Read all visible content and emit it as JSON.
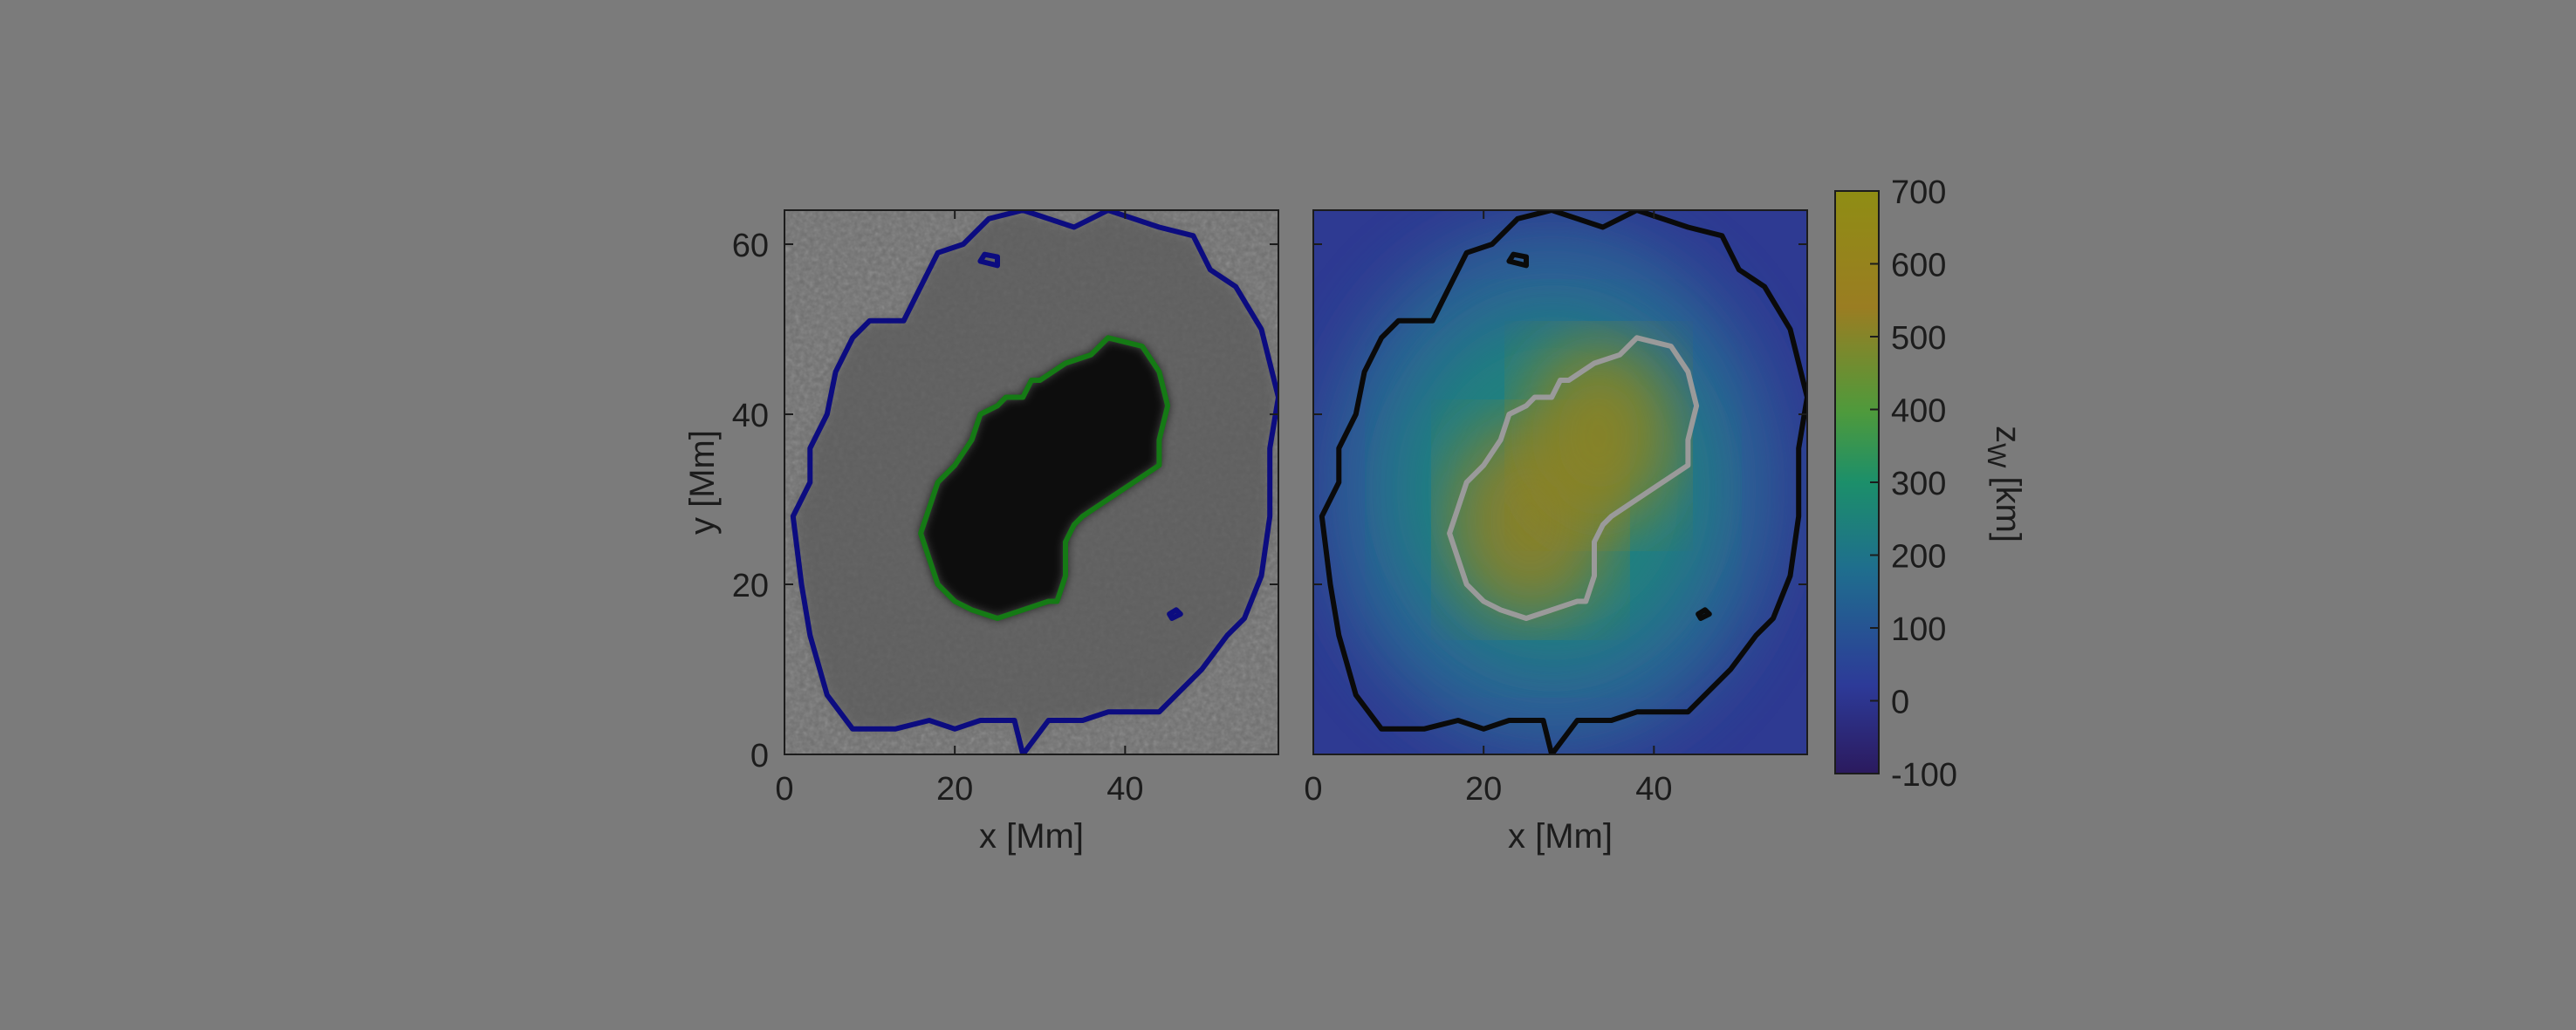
{
  "chart_data": [
    {
      "type": "heatmap",
      "panel": "left",
      "image": "grayscale continuum intensity of a sunspot",
      "xlabel": "x [Mm]",
      "ylabel": "y [Mm]",
      "xlim": [
        0,
        58
      ],
      "ylim": [
        0,
        64
      ],
      "xticks": [
        0,
        20,
        40
      ],
      "yticks": [
        0,
        20,
        40,
        60
      ],
      "contours": [
        {
          "name": "outer",
          "color": "#0c0c80",
          "points": [
            [
              28,
              64
            ],
            [
              34,
              62
            ],
            [
              38,
              64
            ],
            [
              44,
              62
            ],
            [
              48,
              61
            ],
            [
              50,
              57
            ],
            [
              53,
              55
            ],
            [
              56,
              50
            ],
            [
              58,
              42
            ],
            [
              57,
              36
            ],
            [
              57,
              28
            ],
            [
              56,
              21
            ],
            [
              54,
              16
            ],
            [
              52,
              14
            ],
            [
              49,
              10
            ],
            [
              46,
              7
            ],
            [
              44,
              5
            ],
            [
              41,
              5
            ],
            [
              38,
              5
            ],
            [
              35,
              4
            ],
            [
              31,
              4
            ],
            [
              28,
              0
            ],
            [
              27,
              4
            ],
            [
              23,
              4
            ],
            [
              20,
              3
            ],
            [
              17,
              4
            ],
            [
              13,
              3
            ],
            [
              8,
              3
            ],
            [
              5,
              7
            ],
            [
              3,
              14
            ],
            [
              2,
              20
            ],
            [
              1,
              28
            ],
            [
              3,
              32
            ],
            [
              3,
              36
            ],
            [
              5,
              40
            ],
            [
              6,
              45
            ],
            [
              8,
              49
            ],
            [
              10,
              51
            ],
            [
              14,
              51
            ],
            [
              16,
              55
            ],
            [
              18,
              59
            ],
            [
              21,
              60
            ],
            [
              24,
              63
            ],
            [
              28,
              64
            ]
          ]
        },
        {
          "name": "inner",
          "color": "#157a15",
          "points": [
            [
              38,
              49
            ],
            [
              42,
              48
            ],
            [
              44,
              45
            ],
            [
              45,
              41
            ],
            [
              44,
              37
            ],
            [
              44,
              34
            ],
            [
              41,
              32
            ],
            [
              38,
              30
            ],
            [
              35,
              28
            ],
            [
              34,
              27
            ],
            [
              33,
              25
            ],
            [
              33,
              21
            ],
            [
              32,
              18
            ],
            [
              31,
              18
            ],
            [
              28,
              17
            ],
            [
              25,
              16
            ],
            [
              22,
              17
            ],
            [
              20,
              18
            ],
            [
              18,
              20
            ],
            [
              17,
              23
            ],
            [
              16,
              26
            ],
            [
              17,
              29
            ],
            [
              18,
              32
            ],
            [
              20,
              34
            ],
            [
              22,
              37
            ],
            [
              23,
              40
            ],
            [
              25,
              41
            ],
            [
              26,
              42
            ],
            [
              28,
              42
            ],
            [
              29,
              44
            ],
            [
              30,
              44
            ],
            [
              33,
              46
            ],
            [
              36,
              47
            ],
            [
              38,
              49
            ]
          ]
        },
        {
          "name": "blob1",
          "color": "#0c0c80",
          "points": [
            [
              23,
              58
            ],
            [
              25,
              57.5
            ],
            [
              25,
              58.5
            ],
            [
              23.5,
              58.8
            ]
          ]
        },
        {
          "name": "blob2",
          "color": "#0c0c80",
          "points": [
            [
              45.5,
              16
            ],
            [
              46.5,
              16.5
            ],
            [
              46,
              17
            ],
            [
              45.2,
              16.5
            ]
          ]
        }
      ]
    },
    {
      "type": "heatmap",
      "panel": "right",
      "image": "map of z_W with colormap from dark blue to olive",
      "xlabel": "x [Mm]",
      "xlim": [
        0,
        58
      ],
      "ylim": [
        0,
        64
      ],
      "xticks": [
        0,
        20,
        40
      ],
      "colorbar": {
        "label": "z",
        "label_sub": "W",
        "label_unit": "[km]",
        "ticks": [
          700,
          600,
          500,
          400,
          300,
          200,
          100,
          0,
          -100
        ],
        "range": [
          -100,
          700
        ]
      }
    }
  ],
  "colormap": [
    "#2a1a5e",
    "#2e3496",
    "#1f6b8a",
    "#1c8d66",
    "#4f9b3b",
    "#9a7e24",
    "#8e8c16"
  ]
}
